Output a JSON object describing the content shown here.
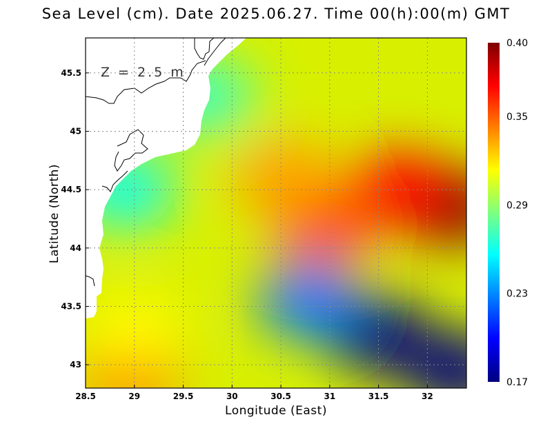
{
  "title": "Sea Level (cm). Date 2025.06.27. Time 00(h):00(m) GMT",
  "annotation": "Z = 2.5 m",
  "x_axis": {
    "label": "Longitude (East)",
    "range": [
      28.5,
      32.4
    ],
    "ticks": [
      28.5,
      29,
      29.5,
      30,
      30.5,
      31,
      31.5,
      32
    ],
    "tick_labels": [
      "28.5",
      "29",
      "29.5",
      "30",
      "30.5",
      "31",
      "31.5",
      "32"
    ]
  },
  "y_axis": {
    "label": "Latitude (North)",
    "range": [
      42.8,
      45.8
    ],
    "ticks": [
      43,
      43.5,
      44,
      44.5,
      45,
      45.5
    ],
    "tick_labels": [
      "43",
      "43.5",
      "44",
      "44.5",
      "45",
      "45.5"
    ]
  },
  "colorbar": {
    "range": [
      0.17,
      0.4
    ],
    "tick_values": [
      0.17,
      0.23,
      0.29,
      0.35,
      0.4
    ],
    "tick_labels": [
      "0.17",
      "0.23",
      "0.29",
      "0.35",
      "0.40"
    ],
    "colors": [
      "#00007f",
      "#0000ff",
      "#007fff",
      "#00ffff",
      "#7fff7f",
      "#ffff00",
      "#ff7f00",
      "#ff0000",
      "#7f0000"
    ]
  },
  "chart_data": {
    "type": "heatmap",
    "title": "Sea Level (cm). Date 2025.06.27. Time 00(h):00(m) GMT",
    "xlabel": "Longitude (East)",
    "ylabel": "Latitude (North)",
    "xlim": [
      28.5,
      32.4
    ],
    "ylim": [
      42.8,
      45.8
    ],
    "value_range": [
      0.17,
      0.4
    ],
    "grid": true,
    "features": [
      {
        "name": "high",
        "lon": 32.25,
        "lat": 44.35,
        "value": 0.4
      },
      {
        "name": "high",
        "lon": 31.7,
        "lat": 44.5,
        "value": 0.37
      },
      {
        "name": "high",
        "lon": 30.95,
        "lat": 44.2,
        "value": 0.355
      },
      {
        "name": "high",
        "lon": 30.55,
        "lat": 44.6,
        "value": 0.335
      },
      {
        "name": "high",
        "lon": 28.95,
        "lat": 42.9,
        "value": 0.34
      },
      {
        "name": "low",
        "lon": 31.5,
        "lat": 43.25,
        "value": 0.17
      },
      {
        "name": "low",
        "lon": 32.3,
        "lat": 42.95,
        "value": 0.17
      },
      {
        "name": "low",
        "lon": 30.8,
        "lat": 43.55,
        "value": 0.225
      },
      {
        "name": "low",
        "lon": 28.9,
        "lat": 44.5,
        "value": 0.26
      },
      {
        "name": "low",
        "lon": 29.7,
        "lat": 45.3,
        "value": 0.27
      },
      {
        "name": "high",
        "lon": 29.0,
        "lat": 43.3,
        "value": 0.315
      }
    ]
  }
}
